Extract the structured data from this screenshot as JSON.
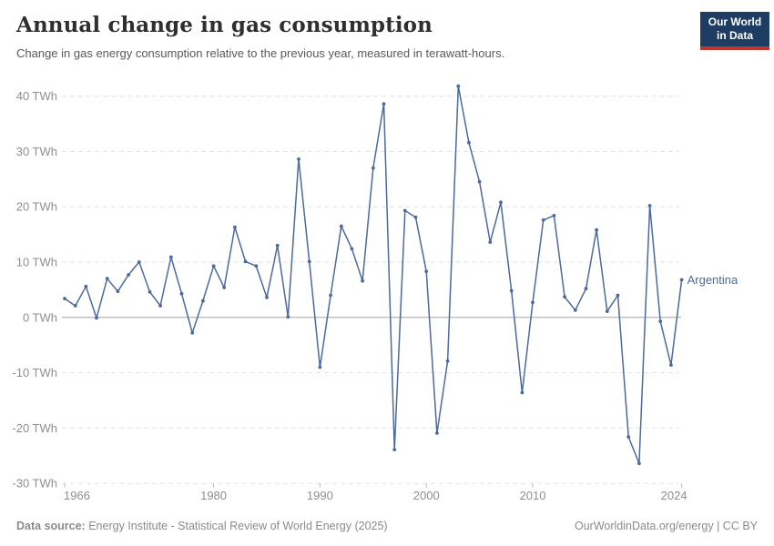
{
  "header": {
    "title": "Annual change in gas consumption",
    "subtitle": "Change in gas energy consumption relative to the previous year, measured in terawatt-hours."
  },
  "logo": {
    "line1": "Our World",
    "line2": "in Data",
    "navy": "#1d3d63",
    "red": "#c0352f"
  },
  "footer": {
    "source_label": "Data source:",
    "source_text": " Energy Institute - Statistical Review of World Energy (2025)",
    "credit": "OurWorldinData.org/energy | CC BY"
  },
  "chart_data": {
    "type": "line",
    "title": "Annual change in gas consumption",
    "ylabel": "TWh",
    "xlabel": "",
    "xlim": [
      1966,
      2024
    ],
    "ylim": [
      -30,
      40
    ],
    "grid": "horizontal-dashed",
    "zero_line": true,
    "legend_position": "end-of-line-label",
    "x_ticks": [
      1966,
      1980,
      1990,
      2000,
      2010,
      2024
    ],
    "y_ticks": [
      {
        "value": 40,
        "label": "40 TWh"
      },
      {
        "value": 30,
        "label": "30 TWh"
      },
      {
        "value": 20,
        "label": "20 TWh"
      },
      {
        "value": 10,
        "label": "10 TWh"
      },
      {
        "value": 0,
        "label": "0 TWh"
      },
      {
        "value": -10,
        "label": "-10 TWh"
      },
      {
        "value": -20,
        "label": "-20 TWh"
      },
      {
        "value": -30,
        "label": "-30 TWh"
      }
    ],
    "series": [
      {
        "name": "Argentina",
        "color": "#4C6A9C",
        "x": [
          1966,
          1967,
          1968,
          1969,
          1970,
          1971,
          1972,
          1973,
          1974,
          1975,
          1976,
          1977,
          1978,
          1979,
          1980,
          1981,
          1982,
          1983,
          1984,
          1985,
          1986,
          1987,
          1988,
          1989,
          1990,
          1991,
          1992,
          1993,
          1994,
          1995,
          1996,
          1997,
          1998,
          1999,
          2000,
          2001,
          2002,
          2003,
          2004,
          2005,
          2006,
          2007,
          2008,
          2009,
          2010,
          2011,
          2012,
          2013,
          2014,
          2015,
          2016,
          2017,
          2018,
          2019,
          2020,
          2021,
          2022,
          2023,
          2024
        ],
        "values": [
          3.4,
          2.1,
          5.6,
          -0.1,
          7.0,
          4.7,
          7.7,
          10.0,
          4.6,
          2.1,
          10.9,
          4.3,
          -2.8,
          3.0,
          9.3,
          5.4,
          16.3,
          10.1,
          9.3,
          3.6,
          13.0,
          0.1,
          28.6,
          10.1,
          -9.0,
          4.0,
          16.5,
          12.4,
          6.6,
          27.0,
          38.6,
          -23.9,
          19.3,
          18.1,
          8.3,
          -20.9,
          -7.9,
          41.8,
          31.6,
          24.5,
          13.6,
          20.8,
          4.8,
          -13.6,
          2.7,
          17.6,
          18.4,
          3.7,
          1.3,
          5.2,
          15.8,
          1.1,
          4.0,
          -21.6,
          -26.4,
          20.2,
          -0.7,
          -8.6,
          6.8
        ]
      }
    ],
    "colors": {
      "grid": "#e3e3e3",
      "zero_line": "#a2a2a2",
      "axis_text": "#8f8f8f",
      "tick_mark": "#b8b8b8"
    }
  }
}
